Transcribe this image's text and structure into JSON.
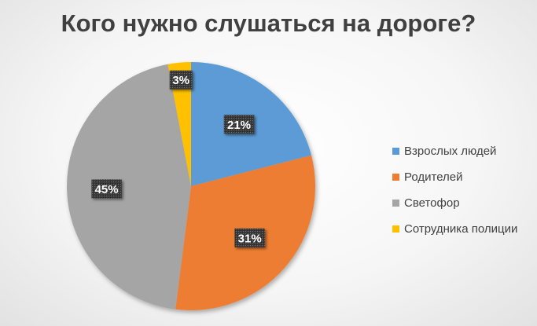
{
  "chart_data": {
    "type": "pie",
    "title": "Кого нужно слушаться на дороге?",
    "categories": [
      "Взрослых людей",
      "Родителей",
      "Светофор",
      "Сотрудника полиции"
    ],
    "values": [
      21,
      31,
      45,
      3
    ],
    "data_labels": [
      "21%",
      "31%",
      "45%",
      "3%"
    ],
    "colors": [
      "#5b9bd5",
      "#ed7d31",
      "#a5a5a5",
      "#ffc000"
    ],
    "start_angle_deg": 0,
    "direction": "clockwise",
    "legend_position": "right"
  }
}
